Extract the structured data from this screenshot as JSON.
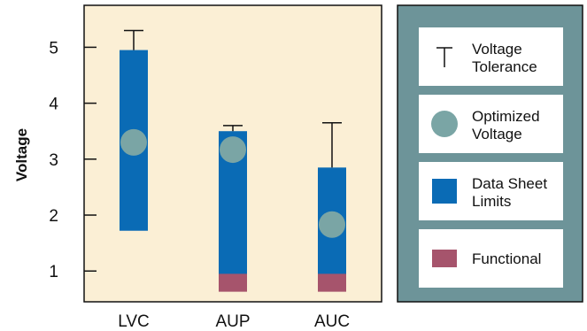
{
  "chart_data": {
    "type": "bar",
    "title": "",
    "ylabel": "Voltage",
    "xlabel": "",
    "ylim": [
      0.45,
      5.75
    ],
    "yticks": [
      1,
      2,
      3,
      4,
      5
    ],
    "categories": [
      "LVC",
      "AUP",
      "AUC"
    ],
    "series": [
      {
        "name": "Data Sheet Limits",
        "kind": "range-bar",
        "color": "#0a6bb5",
        "low": [
          1.72,
          0.92,
          0.92
        ],
        "high": [
          4.95,
          3.5,
          2.85
        ]
      },
      {
        "name": "Functional",
        "kind": "range-bar",
        "color": "#a6546c",
        "low": [
          null,
          0.63,
          0.63
        ],
        "high": [
          null,
          0.95,
          0.95
        ]
      },
      {
        "name": "Voltage Tolerance",
        "kind": "error-whisker",
        "color": "#111111",
        "low": [
          4.95,
          3.5,
          2.85
        ],
        "high": [
          5.3,
          3.6,
          3.65
        ]
      },
      {
        "name": "Optimized Voltage",
        "kind": "marker",
        "color": "#7aa5a5",
        "values": [
          3.3,
          3.17,
          1.83
        ]
      }
    ],
    "legend": {
      "placement": "right",
      "items": [
        {
          "line1": "Voltage",
          "line2": "Tolerance",
          "symbol": "tolerance"
        },
        {
          "line1": "Optimized",
          "line2": "Voltage",
          "symbol": "circle"
        },
        {
          "line1": "Data Sheet",
          "line2": "Limits",
          "symbol": "square-blue"
        },
        {
          "line1": "Functional",
          "line2": "",
          "symbol": "square-red"
        }
      ]
    },
    "colors": {
      "plot_background": "#fbefd5",
      "legend_panel": "#6d9499",
      "legend_cell": "#ffffff",
      "limits_blue": "#0a6bb5",
      "functional_red": "#a6546c",
      "optimized_circle": "#7aa5a5"
    }
  }
}
